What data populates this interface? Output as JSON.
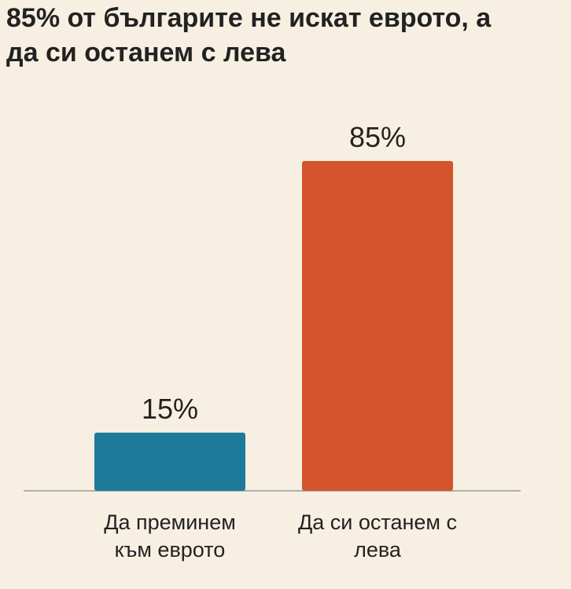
{
  "chart_data": {
    "type": "bar",
    "title": "85% от българите не искат еврото, а да си останем с лева",
    "categories": [
      "Да преминем към еврото",
      "Да си останем с лева"
    ],
    "values": [
      15,
      85
    ],
    "value_labels": [
      "15%",
      "85%"
    ],
    "colors": [
      "#1d7a9b",
      "#d4542c"
    ]
  }
}
